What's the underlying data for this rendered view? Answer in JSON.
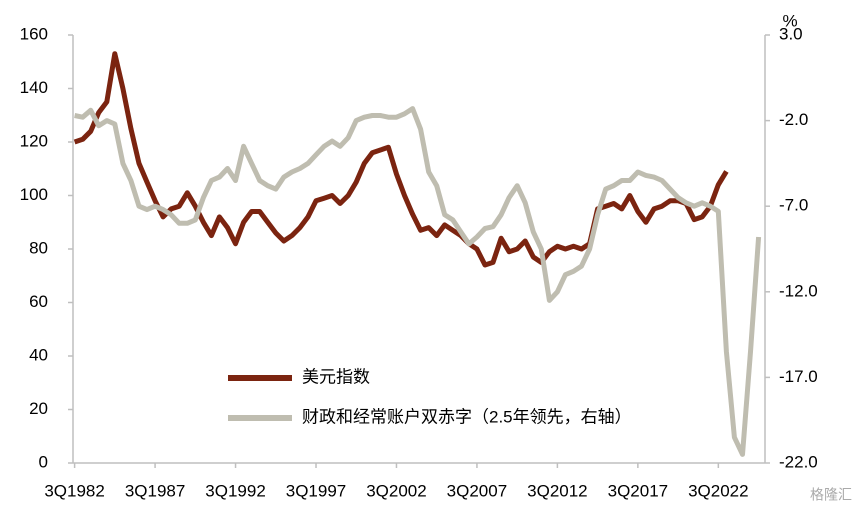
{
  "chart_data": {
    "type": "line",
    "x": [
      1982.5,
      1983.0,
      1983.5,
      1984.0,
      1984.5,
      1985.0,
      1985.5,
      1986.0,
      1986.5,
      1987.0,
      1987.5,
      1988.0,
      1988.5,
      1989.0,
      1989.5,
      1990.0,
      1990.5,
      1991.0,
      1991.5,
      1992.0,
      1992.5,
      1993.0,
      1993.5,
      1994.0,
      1994.5,
      1995.0,
      1995.5,
      1996.0,
      1996.5,
      1997.0,
      1997.5,
      1998.0,
      1998.5,
      1999.0,
      1999.5,
      2000.0,
      2000.5,
      2001.0,
      2001.5,
      2002.0,
      2002.5,
      2003.0,
      2003.5,
      2004.0,
      2004.5,
      2005.0,
      2005.5,
      2006.0,
      2006.5,
      2007.0,
      2007.5,
      2008.0,
      2008.5,
      2009.0,
      2009.5,
      2010.0,
      2010.5,
      2011.0,
      2011.5,
      2012.0,
      2012.5,
      2013.0,
      2013.5,
      2014.0,
      2014.5,
      2015.0,
      2015.5,
      2016.0,
      2016.5,
      2017.0,
      2017.5,
      2018.0,
      2018.5,
      2019.0,
      2019.5,
      2020.0,
      2020.5,
      2021.0,
      2021.5,
      2022.0,
      2022.5,
      2023.0,
      2023.5,
      2024.0,
      2024.5,
      2025.0
    ],
    "series": [
      {
        "name": "美元指数",
        "color": "#7b2410",
        "values": [
          120,
          121,
          124,
          131,
          135,
          153,
          140,
          125,
          112,
          105,
          98,
          92,
          95,
          96,
          101,
          96,
          90,
          85,
          92,
          88,
          82,
          90,
          94,
          94,
          90,
          86,
          83,
          85,
          88,
          92,
          98,
          99,
          100,
          97,
          100,
          105,
          112,
          116,
          117,
          118,
          108,
          100,
          93,
          87,
          88,
          85,
          89,
          87,
          85,
          82,
          80,
          74,
          75,
          84,
          79,
          80,
          83,
          77,
          75,
          79,
          81,
          80,
          81,
          80,
          82,
          95,
          96,
          97,
          95,
          100,
          94,
          90,
          95,
          96,
          98,
          98,
          97,
          91,
          92,
          96,
          104,
          109,
          null,
          null,
          null,
          null
        ]
      },
      {
        "name": "财政和经常账户双赤字（2.5年领先，右轴）",
        "color": "#bfbdb0",
        "axis": "y2",
        "values": [
          -1.7,
          -1.8,
          -1.4,
          -2.3,
          -2.0,
          -2.2,
          -4.5,
          -5.5,
          -7.0,
          -7.2,
          -7.0,
          -7.2,
          -7.5,
          -8.0,
          -8.0,
          -7.8,
          -6.5,
          -5.5,
          -5.3,
          -4.8,
          -5.5,
          -3.5,
          -4.5,
          -5.5,
          -5.8,
          -6.0,
          -5.3,
          -5.0,
          -4.8,
          -4.5,
          -4.0,
          -3.5,
          -3.2,
          -3.5,
          -3.0,
          -2.0,
          -1.8,
          -1.7,
          -1.7,
          -1.8,
          -1.8,
          -1.6,
          -1.3,
          -2.5,
          -5.0,
          -5.8,
          -7.5,
          -7.8,
          -8.5,
          -9.2,
          -8.8,
          -8.3,
          -8.2,
          -7.5,
          -6.5,
          -5.8,
          -6.8,
          -8.5,
          -9.5,
          -12.5,
          -12.0,
          -11.0,
          -10.8,
          -10.5,
          -9.5,
          -7.5,
          -6.0,
          -5.8,
          -5.5,
          -5.5,
          -5.0,
          -5.2,
          -5.3,
          -5.5,
          -6.0,
          -6.5,
          -6.8,
          -7.0,
          -6.8,
          -7.0,
          -7.3,
          -15.5,
          -20.5,
          -21.5,
          -15.5,
          -8.8
        ]
      }
    ],
    "xlim": [
      1982.4,
      2025.4
    ],
    "xticks": [
      {
        "value": 1982.5,
        "label": "3Q1982"
      },
      {
        "value": 1987.5,
        "label": "3Q1987"
      },
      {
        "value": 1992.5,
        "label": "3Q1992"
      },
      {
        "value": 1997.5,
        "label": "3Q1997"
      },
      {
        "value": 2002.5,
        "label": "3Q2002"
      },
      {
        "value": 2007.5,
        "label": "3Q2007"
      },
      {
        "value": 2012.5,
        "label": "3Q2012"
      },
      {
        "value": 2017.5,
        "label": "3Q2017"
      },
      {
        "value": 2022.5,
        "label": "3Q2022"
      }
    ],
    "ylim": [
      0,
      160
    ],
    "yticks": [
      0,
      20,
      40,
      60,
      80,
      100,
      120,
      140,
      160
    ],
    "y2lim": [
      -22,
      3
    ],
    "y2ticks": [
      {
        "value": 3,
        "label": "3.0"
      },
      {
        "value": -2,
        "label": "-2.0"
      },
      {
        "value": -7,
        "label": "-7.0"
      },
      {
        "value": -12,
        "label": "-12.0"
      },
      {
        "value": -17,
        "label": "-17.0"
      },
      {
        "value": -22,
        "label": "-22.0"
      }
    ],
    "y2_label": "%",
    "watermark": "格隆汇"
  }
}
